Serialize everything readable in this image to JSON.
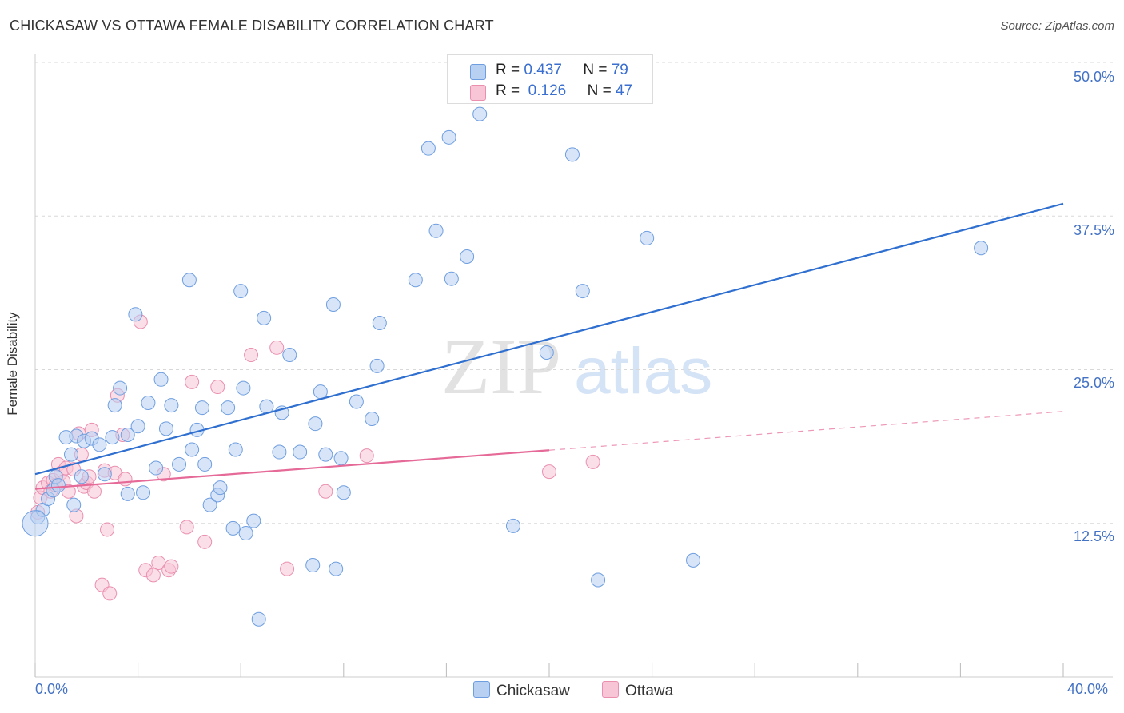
{
  "title": "CHICKASAW VS OTTAWA FEMALE DISABILITY CORRELATION CHART",
  "source": "Source: ZipAtlas.com",
  "watermark": {
    "zip": "ZIP",
    "atlas": "atlas"
  },
  "legend": {
    "rows": [
      {
        "r_label": "R =",
        "r_value": "0.437",
        "n_label": "N =",
        "n_value": "79"
      },
      {
        "r_label": "R =",
        "r_value": "0.126",
        "n_label": "N =",
        "n_value": "47"
      }
    ]
  },
  "bottom_legend": [
    "Chickasaw",
    "Ottawa"
  ],
  "colors": {
    "blue_fill": "#b8d0f2",
    "blue_stroke": "#6e9ee0",
    "blue_line": "#2f6fd0",
    "pink_fill": "#f7c5d6",
    "pink_stroke": "#ea8fb0",
    "pink_line": "#e66a98",
    "axis_text": "#4472c4",
    "grid": "#d8d8d8"
  },
  "chart_data": {
    "type": "scatter",
    "title": "CHICKASAW VS OTTAWA FEMALE DISABILITY CORRELATION CHART",
    "xlabel": "",
    "ylabel": "Female Disability",
    "xlim": [
      0,
      40
    ],
    "ylim": [
      0,
      50
    ],
    "x_tick_labels": [
      "0.0%",
      "40.0%"
    ],
    "y_ticks": [
      12.5,
      25.0,
      37.5,
      50.0
    ],
    "y_tick_labels": [
      "12.5%",
      "25.0%",
      "37.5%",
      "50.0%"
    ],
    "series": [
      {
        "name": "Chickasaw",
        "r": 0.437,
        "n": 79,
        "trend": {
          "x": [
            0,
            40
          ],
          "y": [
            16.5,
            38.5
          ],
          "dashed_from": null
        },
        "points": [
          [
            0.1,
            13.0
          ],
          [
            0.3,
            13.6
          ],
          [
            0.5,
            14.5
          ],
          [
            0.7,
            15.2
          ],
          [
            0.8,
            16.3
          ],
          [
            0.9,
            15.6
          ],
          [
            1.2,
            19.5
          ],
          [
            1.4,
            18.1
          ],
          [
            1.5,
            14.0
          ],
          [
            1.6,
            19.6
          ],
          [
            1.8,
            16.3
          ],
          [
            1.9,
            19.2
          ],
          [
            2.2,
            19.4
          ],
          [
            2.5,
            18.9
          ],
          [
            2.7,
            16.5
          ],
          [
            3.0,
            19.5
          ],
          [
            3.1,
            22.1
          ],
          [
            3.3,
            23.5
          ],
          [
            3.6,
            19.7
          ],
          [
            3.6,
            14.9
          ],
          [
            3.9,
            29.5
          ],
          [
            4.0,
            20.4
          ],
          [
            4.2,
            15.0
          ],
          [
            4.4,
            22.3
          ],
          [
            4.7,
            17.0
          ],
          [
            4.9,
            24.2
          ],
          [
            5.1,
            20.2
          ],
          [
            5.3,
            22.1
          ],
          [
            5.6,
            17.3
          ],
          [
            6.0,
            32.3
          ],
          [
            6.1,
            18.5
          ],
          [
            6.3,
            20.1
          ],
          [
            6.5,
            21.9
          ],
          [
            6.6,
            17.3
          ],
          [
            6.8,
            14.0
          ],
          [
            7.1,
            14.8
          ],
          [
            7.2,
            15.4
          ],
          [
            7.5,
            21.9
          ],
          [
            7.7,
            12.1
          ],
          [
            7.8,
            18.5
          ],
          [
            8.0,
            31.4
          ],
          [
            8.1,
            23.5
          ],
          [
            8.2,
            11.7
          ],
          [
            8.5,
            12.7
          ],
          [
            8.7,
            4.7
          ],
          [
            8.9,
            29.2
          ],
          [
            9.0,
            22.0
          ],
          [
            9.5,
            18.3
          ],
          [
            9.6,
            21.5
          ],
          [
            9.9,
            26.2
          ],
          [
            10.3,
            18.3
          ],
          [
            10.8,
            9.1
          ],
          [
            10.9,
            20.6
          ],
          [
            11.1,
            23.2
          ],
          [
            11.3,
            18.1
          ],
          [
            11.6,
            30.3
          ],
          [
            11.7,
            8.8
          ],
          [
            11.9,
            17.8
          ],
          [
            12.0,
            15.0
          ],
          [
            12.5,
            22.4
          ],
          [
            13.1,
            21.0
          ],
          [
            13.3,
            25.3
          ],
          [
            13.4,
            28.8
          ],
          [
            14.8,
            32.3
          ],
          [
            15.3,
            43.0
          ],
          [
            15.6,
            36.3
          ],
          [
            16.1,
            43.9
          ],
          [
            16.2,
            32.4
          ],
          [
            16.8,
            34.2
          ],
          [
            17.3,
            45.8
          ],
          [
            18.6,
            12.3
          ],
          [
            19.9,
            26.4
          ],
          [
            20.9,
            42.5
          ],
          [
            21.3,
            31.4
          ],
          [
            21.9,
            7.9
          ],
          [
            23.8,
            35.7
          ],
          [
            25.6,
            9.5
          ],
          [
            36.8,
            34.9
          ],
          [
            0.0,
            12.5
          ]
        ]
      },
      {
        "name": "Ottawa",
        "r": 0.126,
        "n": 47,
        "trend": {
          "x": [
            0,
            40
          ],
          "y": [
            15.3,
            21.6
          ],
          "dashed_from": 20
        },
        "points": [
          [
            0.1,
            13.4
          ],
          [
            0.2,
            14.6
          ],
          [
            0.3,
            15.4
          ],
          [
            0.5,
            15.8
          ],
          [
            0.6,
            15.1
          ],
          [
            0.7,
            16.0
          ],
          [
            0.8,
            15.6
          ],
          [
            0.9,
            17.3
          ],
          [
            1.0,
            16.6
          ],
          [
            1.1,
            15.9
          ],
          [
            1.2,
            17.0
          ],
          [
            1.3,
            15.1
          ],
          [
            1.5,
            16.9
          ],
          [
            1.6,
            13.1
          ],
          [
            1.7,
            19.8
          ],
          [
            1.8,
            18.1
          ],
          [
            1.9,
            15.5
          ],
          [
            2.0,
            15.8
          ],
          [
            2.1,
            16.3
          ],
          [
            2.2,
            20.1
          ],
          [
            2.3,
            15.1
          ],
          [
            2.6,
            7.5
          ],
          [
            2.7,
            16.8
          ],
          [
            2.8,
            12.0
          ],
          [
            2.9,
            6.8
          ],
          [
            3.1,
            16.6
          ],
          [
            3.2,
            22.9
          ],
          [
            3.4,
            19.7
          ],
          [
            3.5,
            16.1
          ],
          [
            4.1,
            28.9
          ],
          [
            4.3,
            8.7
          ],
          [
            4.6,
            8.3
          ],
          [
            4.8,
            9.3
          ],
          [
            5.0,
            16.5
          ],
          [
            5.2,
            8.7
          ],
          [
            5.3,
            9.0
          ],
          [
            5.9,
            12.2
          ],
          [
            6.1,
            24.0
          ],
          [
            6.6,
            11.0
          ],
          [
            7.1,
            23.6
          ],
          [
            8.4,
            26.2
          ],
          [
            9.4,
            26.8
          ],
          [
            9.8,
            8.8
          ],
          [
            11.3,
            15.1
          ],
          [
            12.9,
            18.0
          ],
          [
            20.0,
            16.7
          ],
          [
            21.7,
            17.5
          ]
        ]
      }
    ]
  }
}
